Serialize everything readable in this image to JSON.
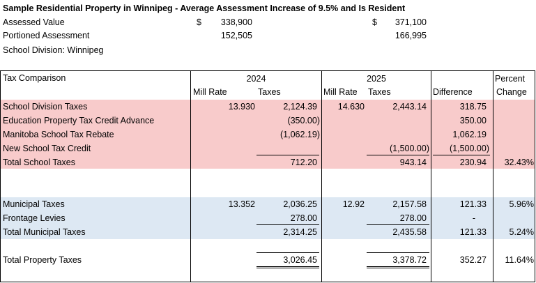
{
  "header": {
    "title": "Sample Residential Property in Winnipeg - Average Assessment Increase of 9.5% and Is Resident",
    "assessed_label": "Assessed Value",
    "assessed_2024_cur": "$",
    "assessed_2024": "338,900",
    "assessed_2025_cur": "$",
    "assessed_2025": "371,100",
    "portioned_label": "Portioned Assessment",
    "portioned_2024": "152,505",
    "portioned_2025": "166,995",
    "school_division": "School Division: Winnipeg"
  },
  "table_header": {
    "tax_comparison": "Tax Comparison",
    "year_2024": "2024",
    "year_2025": "2025",
    "mill_rate_2024": "Mill Rate",
    "taxes_2024": "Taxes",
    "mill_rate_2025": "Mill Rate",
    "taxes_2025": "Taxes",
    "difference": "Difference",
    "percent": "Percent",
    "change": "Change"
  },
  "school": {
    "rows": [
      {
        "label": "School Division Taxes",
        "mill_2024": "13.930",
        "taxes_2024": "2,124.39",
        "mill_2025": "14.630",
        "taxes_2025": "2,443.14",
        "diff": "318.75",
        "pct": ""
      },
      {
        "label": "Education Property Tax Credit Advance",
        "mill_2024": "",
        "taxes_2024": "(350.00)",
        "mill_2025": "",
        "taxes_2025": "",
        "diff": "350.00",
        "pct": ""
      },
      {
        "label": "Manitoba School Tax Rebate",
        "mill_2024": "",
        "taxes_2024": "(1,062.19)",
        "mill_2025": "",
        "taxes_2025": "",
        "diff": "1,062.19",
        "pct": ""
      },
      {
        "label": "New School Tax Credit",
        "mill_2024": "",
        "taxes_2024": "",
        "mill_2025": "",
        "taxes_2025": "(1,500.00)",
        "diff": "(1,500.00)",
        "pct": ""
      },
      {
        "label": "Total School Taxes",
        "mill_2024": "",
        "taxes_2024": "712.20",
        "mill_2025": "",
        "taxes_2025": "943.14",
        "diff": "230.94",
        "pct": "32.43%"
      }
    ]
  },
  "municipal": {
    "rows": [
      {
        "label": "Municipal Taxes",
        "mill_2024": "13.352",
        "taxes_2024": "2,036.25",
        "mill_2025": "12.92",
        "taxes_2025": "2,157.58",
        "diff": "121.33",
        "pct": "5.96%"
      },
      {
        "label": "Frontage Levies",
        "mill_2024": "",
        "taxes_2024": "278.00",
        "mill_2025": "",
        "taxes_2025": "278.00",
        "diff": "-",
        "pct": ""
      },
      {
        "label": "Total Municipal Taxes",
        "mill_2024": "",
        "taxes_2024": "2,314.25",
        "mill_2025": "",
        "taxes_2025": "2,435.58",
        "diff": "121.33",
        "pct": "5.24%"
      }
    ]
  },
  "total": {
    "label": "Total Property Taxes",
    "taxes_2024": "3,026.45",
    "taxes_2025": "3,378.72",
    "diff": "352.27",
    "pct": "11.64%"
  }
}
